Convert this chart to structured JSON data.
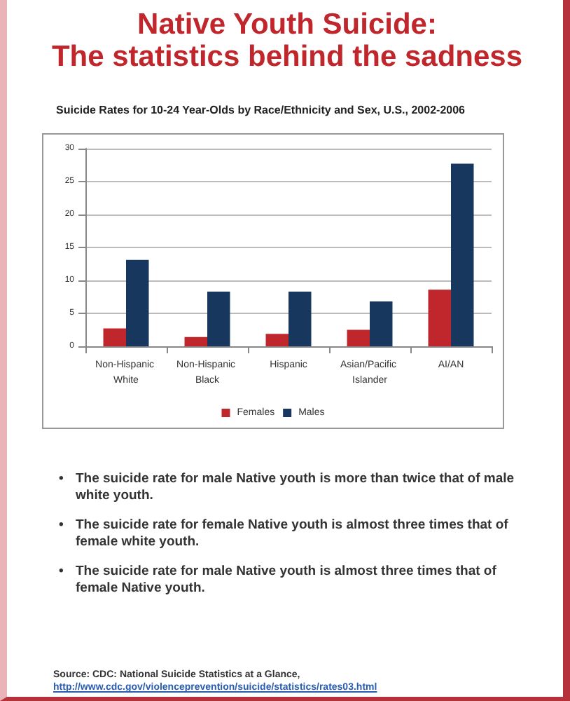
{
  "chart_data": {
    "type": "bar",
    "title": "Native Youth Suicide:\nThe statistics behind the sadness",
    "subtitle": "Suicide Rates for 10-24 Year-Olds by Race/Ethnicity and Sex, U.S., 2002-2006",
    "categories": [
      "Non-Hispanic White",
      "Non-Hispanic Black",
      "Hispanic",
      "Asian/Pacific Islander",
      "AI/AN"
    ],
    "series": [
      {
        "name": "Females",
        "color": "#c0272d",
        "values": [
          2.7,
          1.4,
          1.9,
          2.5,
          8.6
        ]
      },
      {
        "name": "Males",
        "color": "#17375e",
        "values": [
          13.1,
          8.3,
          8.3,
          6.8,
          27.7
        ]
      }
    ],
    "ylim": [
      0,
      30
    ],
    "yticks": [
      0,
      5,
      10,
      15,
      20,
      25,
      30
    ],
    "grid": "y",
    "legend": "bottom",
    "annotations": [
      "• The suicide rate for male Native youth is more than twice that of male white youth.",
      "• The suicide rate for female Native youth is almost three times that of female white youth.",
      "• The suicide rate for male Native youth is almost three times that of female Native youth.",
      "Source:  CDC: National Suicide Statistics at a Glance,",
      "http://www.cdc.gov/violenceprevention/suicide/statistics/rates03.html"
    ]
  }
}
